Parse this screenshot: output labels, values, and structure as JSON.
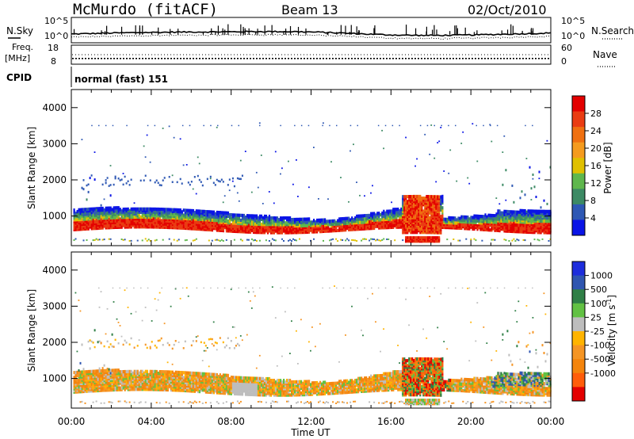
{
  "header": {
    "station": "McMurdo (fitACF)",
    "beam": "Beam 13",
    "date": "02/Oct/2010"
  },
  "noise_panel": {
    "left_label": "N.Sky",
    "right_label": "N.Search",
    "left_ticks": [
      "10^5",
      "10^0"
    ],
    "right_ticks": [
      "10^5",
      "10^0"
    ]
  },
  "freq_panel": {
    "left_label": "Freq.",
    "left_unit": "[MHz]",
    "left_ticks": [
      "18",
      "8"
    ],
    "right_label": "Nave",
    "right_ticks": [
      "60",
      "0"
    ],
    "freq_mhz": 11,
    "nave": 30
  },
  "cpid_panel": {
    "label": "CPID",
    "mode": "normal (fast) 151"
  },
  "colors": {
    "power": [
      "#0a14e6",
      "#2e58b4",
      "#3c8a64",
      "#5fb74d",
      "#e0c000",
      "#f59b1e",
      "#f07010",
      "#ea3c12",
      "#e30000"
    ],
    "velocity": [
      "#1d2ddc",
      "#2f55b0",
      "#2f7f46",
      "#62c143",
      "#bdbdbd",
      "#ffb400",
      "#f59524",
      "#f4840c",
      "#ff5d0a",
      "#e30000"
    ]
  },
  "chart_data": [
    {
      "type": "heatmap",
      "name": "power-panel",
      "x_axis": {
        "range": [
          "00:00",
          "24:00"
        ],
        "ticks": [
          "00:00",
          "04:00",
          "08:00",
          "12:00",
          "16:00",
          "20:00",
          "00:00"
        ],
        "label": "Time UT"
      },
      "ylabel": "Slant Range [km]",
      "ylim": [
        180,
        4500
      ],
      "yticks": [
        1000,
        2000,
        3000,
        4000
      ],
      "colorbar": {
        "label": "Power [dB]",
        "range": [
          0,
          32
        ],
        "ticks": [
          4,
          8,
          12,
          16,
          20,
          24,
          28
        ]
      },
      "bands": [
        {
          "time_range": [
            0.2,
            24
          ],
          "slant_range_km": [
            600,
            1150
          ],
          "power_db": [
            4,
            30
          ]
        },
        {
          "time_range": [
            0.5,
            8.6
          ],
          "slant_range_km": [
            1800,
            2200
          ],
          "power_db": [
            4,
            8
          ]
        },
        {
          "time_range": [
            16.6,
            18.5
          ],
          "slant_range_km": [
            450,
            1650
          ],
          "power_db": [
            16,
            30
          ]
        },
        {
          "time_range": [
            21.5,
            24
          ],
          "slant_range_km": [
            600,
            2400
          ],
          "power_db": [
            4,
            30
          ]
        }
      ]
    },
    {
      "type": "heatmap",
      "name": "velocity-panel",
      "x_axis": {
        "range": [
          "00:00",
          "24:00"
        ],
        "ticks": [
          "00:00",
          "04:00",
          "08:00",
          "12:00",
          "16:00",
          "20:00",
          "00:00"
        ],
        "label": "Time UT"
      },
      "ylabel": "Slant Range [km]",
      "ylim": [
        180,
        4500
      ],
      "yticks": [
        1000,
        2000,
        3000,
        4000
      ],
      "colorbar": {
        "label": "Velocity [m s^-1]",
        "tick_labels": [
          "1000",
          "500",
          "100",
          "25",
          "-25",
          "-100",
          "-500",
          "-1000"
        ]
      },
      "bands": [
        {
          "time_range": [
            0.2,
            24
          ],
          "slant_range_km": [
            600,
            1300
          ],
          "velocity_m_s": [
            -500,
            100
          ]
        },
        {
          "time_range": [
            0.5,
            9
          ],
          "slant_range_km": [
            1900,
            2200
          ],
          "velocity_m_s": [
            -25,
            25
          ]
        },
        {
          "time_range": [
            16.5,
            19
          ],
          "slant_range_km": [
            500,
            1500
          ],
          "velocity_m_s": [
            -1000,
            500
          ]
        },
        {
          "time_range": [
            21,
            24
          ],
          "slant_range_km": [
            600,
            2300
          ],
          "velocity_m_s": [
            -500,
            500
          ]
        }
      ]
    }
  ]
}
